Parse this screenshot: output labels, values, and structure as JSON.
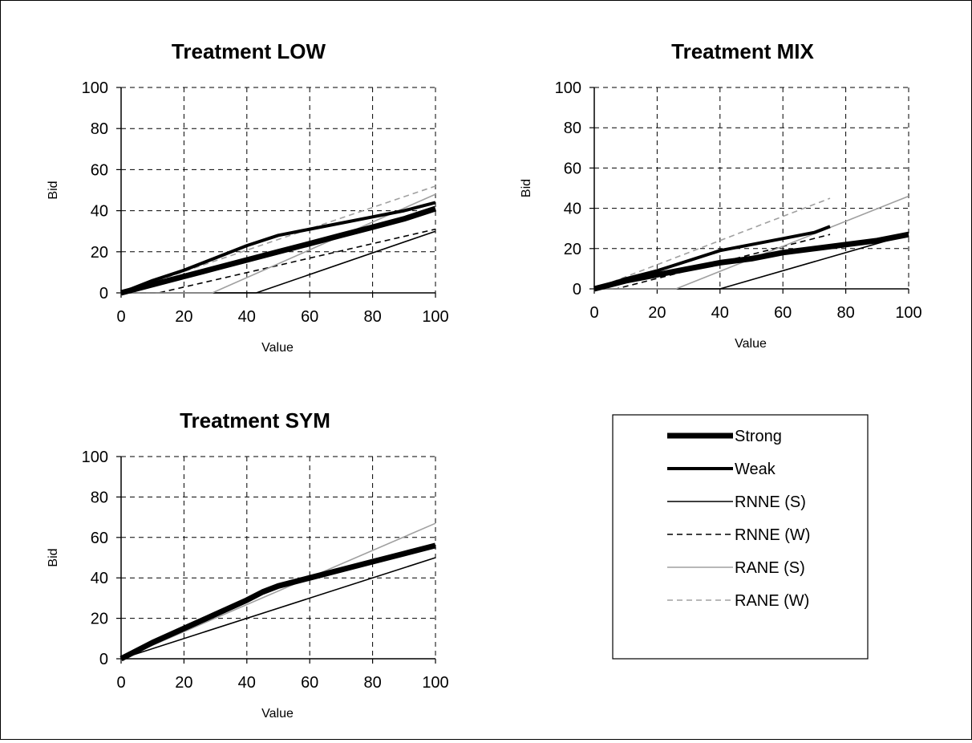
{
  "colors": {
    "black": "#000000",
    "gray": "#a0a0a0",
    "grid": "#000000",
    "background": "#ffffff"
  },
  "legend": {
    "placement": "bottom-right",
    "entries": [
      {
        "label": "Strong",
        "color": "#000000",
        "style": "solid",
        "weight": "extra-thick"
      },
      {
        "label": "Weak",
        "color": "#000000",
        "style": "solid",
        "weight": "thick"
      },
      {
        "label": "RNNE (S)",
        "color": "#000000",
        "style": "solid",
        "weight": "thin"
      },
      {
        "label": "RNNE (W)",
        "color": "#000000",
        "style": "dashed",
        "weight": "thin"
      },
      {
        "label": "RANE (S)",
        "color": "#a0a0a0",
        "style": "solid",
        "weight": "thin"
      },
      {
        "label": "RANE (W)",
        "color": "#a0a0a0",
        "style": "dashed",
        "weight": "thin"
      }
    ]
  },
  "chart_data": [
    {
      "type": "line",
      "title": "Treatment LOW",
      "xlabel": "Value",
      "ylabel": "Bid",
      "xlim": [
        0,
        100
      ],
      "ylim": [
        0,
        100
      ],
      "xticks": [
        "0",
        "20",
        "40",
        "60",
        "80",
        "100"
      ],
      "yticks": [
        "0",
        "20",
        "40",
        "60",
        "80",
        "100"
      ],
      "grid": true,
      "series": [
        {
          "name": "RNNE (S)",
          "points": [
            [
              0,
              0
            ],
            [
              43,
              0
            ],
            [
              100,
              30
            ]
          ]
        },
        {
          "name": "RNNE (W)",
          "points": [
            [
              0,
              0
            ],
            [
              12,
              0
            ],
            [
              100,
              31
            ]
          ]
        },
        {
          "name": "RANE (S)",
          "points": [
            [
              0,
              0
            ],
            [
              29,
              0
            ],
            [
              100,
              48
            ]
          ]
        },
        {
          "name": "RANE (W)",
          "points": [
            [
              0,
              0
            ],
            [
              100,
              52
            ]
          ]
        },
        {
          "name": "Weak",
          "points": [
            [
              0,
              0
            ],
            [
              10,
              6
            ],
            [
              20,
              11
            ],
            [
              30,
              17
            ],
            [
              40,
              23
            ],
            [
              50,
              28
            ],
            [
              60,
              31
            ],
            [
              70,
              34
            ],
            [
              80,
              37
            ],
            [
              90,
              40
            ],
            [
              100,
              44
            ]
          ]
        },
        {
          "name": "Strong",
          "points": [
            [
              0,
              0
            ],
            [
              10,
              4
            ],
            [
              20,
              8
            ],
            [
              30,
              12
            ],
            [
              40,
              16
            ],
            [
              50,
              20
            ],
            [
              60,
              24
            ],
            [
              70,
              28
            ],
            [
              80,
              32
            ],
            [
              90,
              36
            ],
            [
              100,
              41
            ]
          ]
        }
      ]
    },
    {
      "type": "line",
      "title": "Treatment MIX",
      "xlabel": "Value",
      "ylabel": "Bid",
      "xlim": [
        0,
        100
      ],
      "ylim": [
        0,
        100
      ],
      "xticks": [
        "0",
        "20",
        "40",
        "60",
        "80",
        "100"
      ],
      "yticks": [
        "0",
        "20",
        "40",
        "60",
        "80",
        "100"
      ],
      "grid": true,
      "series": [
        {
          "name": "RNNE (S)",
          "points": [
            [
              0,
              0
            ],
            [
              40,
              0
            ],
            [
              100,
              27
            ]
          ]
        },
        {
          "name": "RNNE (W)",
          "points": [
            [
              0,
              0
            ],
            [
              7,
              0
            ],
            [
              75,
              27
            ]
          ]
        },
        {
          "name": "RANE (S)",
          "points": [
            [
              0,
              0
            ],
            [
              26,
              0
            ],
            [
              100,
              46
            ]
          ]
        },
        {
          "name": "RANE (W)",
          "points": [
            [
              0,
              0
            ],
            [
              75,
              45
            ]
          ]
        },
        {
          "name": "Weak",
          "points": [
            [
              0,
              0
            ],
            [
              10,
              5
            ],
            [
              20,
              9
            ],
            [
              30,
              14
            ],
            [
              40,
              19
            ],
            [
              50,
              22
            ],
            [
              60,
              25
            ],
            [
              70,
              28
            ],
            [
              75,
              31
            ]
          ]
        },
        {
          "name": "Strong",
          "points": [
            [
              0,
              0
            ],
            [
              10,
              4
            ],
            [
              20,
              7
            ],
            [
              30,
              10
            ],
            [
              40,
              13
            ],
            [
              50,
              15
            ],
            [
              60,
              18
            ],
            [
              70,
              20
            ],
            [
              80,
              22
            ],
            [
              90,
              24
            ],
            [
              100,
              27
            ]
          ]
        }
      ]
    },
    {
      "type": "line",
      "title": "Treatment SYM",
      "xlabel": "Value",
      "ylabel": "Bid",
      "xlim": [
        0,
        100
      ],
      "ylim": [
        0,
        100
      ],
      "xticks": [
        "0",
        "20",
        "40",
        "60",
        "80",
        "100"
      ],
      "yticks": [
        "0",
        "20",
        "40",
        "60",
        "80",
        "100"
      ],
      "grid": true,
      "series": [
        {
          "name": "RNNE (S)",
          "points": [
            [
              0,
              0
            ],
            [
              100,
              50
            ]
          ]
        },
        {
          "name": "RANE (S)",
          "points": [
            [
              0,
              0
            ],
            [
              100,
              67
            ]
          ]
        },
        {
          "name": "Strong",
          "points": [
            [
              0,
              0
            ],
            [
              10,
              8
            ],
            [
              20,
              15
            ],
            [
              30,
              22
            ],
            [
              40,
              29
            ],
            [
              45,
              33
            ],
            [
              50,
              36
            ],
            [
              60,
              40
            ],
            [
              70,
              44
            ],
            [
              80,
              48
            ],
            [
              90,
              52
            ],
            [
              100,
              56
            ]
          ]
        }
      ]
    }
  ]
}
